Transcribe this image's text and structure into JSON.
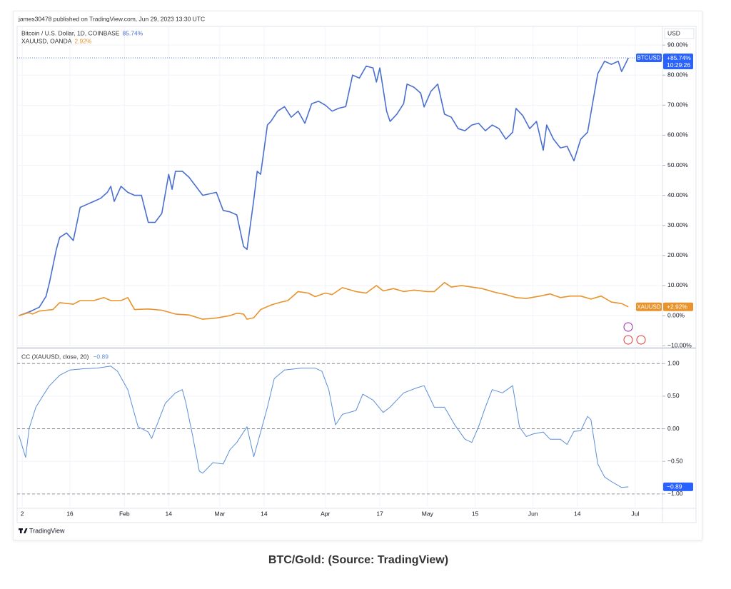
{
  "header": {
    "byline": "james30478 published on TradingView.com, Jun 29, 2023 13:30 UTC"
  },
  "chart_data": [
    {
      "type": "line",
      "currency": "USD",
      "grid": true,
      "price_line": true,
      "xlim": [
        0.5,
        190
      ],
      "xticks": [
        2,
        16,
        {
          "value": 32,
          "label": "Feb"
        },
        {
          "value": 45,
          "label": "14"
        },
        {
          "value": 60,
          "label": "Mar"
        },
        {
          "value": 73,
          "label": "14"
        },
        {
          "value": 91,
          "label": "Apr"
        },
        {
          "value": 107,
          "label": "17"
        },
        {
          "value": 121,
          "label": "May"
        },
        {
          "value": 135,
          "label": "15"
        },
        {
          "value": 152,
          "label": "Jun"
        },
        {
          "value": 165,
          "label": "14"
        },
        {
          "value": 182,
          "label": "Jul"
        }
      ],
      "ylim": [
        -10.2,
        96.2
      ],
      "yticks": [
        {
          "value": -10,
          "label": "−10.00%"
        },
        {
          "value": 0,
          "label": "0.00%"
        },
        {
          "value": 10,
          "label": "10.00%"
        },
        {
          "value": 20,
          "label": "20.00%"
        },
        {
          "value": 30,
          "label": "30.00%"
        },
        {
          "value": 40,
          "label": "40.00%"
        },
        {
          "value": 50,
          "label": "50.00%"
        },
        {
          "value": 60,
          "label": "60.00%"
        },
        {
          "value": 70,
          "label": "70.00%"
        },
        {
          "value": 80,
          "label": "80.00%"
        },
        {
          "value": 90,
          "label": "90.00%"
        }
      ],
      "series": [
        {
          "name": "Bitcoin / U.S. Dollar, 1D, COINBASE",
          "color": "#4a6fd0",
          "badge_color": "#2962ff",
          "legend_value": "85.74%",
          "badge": "BTCUSD",
          "badge_value": "+85.74%",
          "countdown": "10:29:26",
          "x": [
            1,
            4,
            7,
            9,
            10,
            12,
            13,
            15,
            17,
            19,
            21,
            23,
            25,
            27,
            28,
            29,
            31,
            33,
            35,
            37,
            39,
            41,
            43,
            45,
            46,
            47,
            49,
            51,
            53,
            55,
            57,
            59,
            61,
            63,
            65,
            67,
            68,
            70,
            71,
            72,
            74,
            75,
            77,
            79,
            81,
            83,
            85,
            87,
            89,
            91,
            93,
            95,
            97,
            99,
            101,
            103,
            105,
            106,
            107,
            109,
            110,
            112,
            114,
            115,
            117,
            119,
            120,
            122,
            124,
            126,
            128,
            130,
            132,
            134,
            136,
            138,
            140,
            142,
            144,
            146,
            147,
            149,
            151,
            153,
            155,
            156,
            158,
            160,
            162,
            164,
            166,
            168,
            170,
            171,
            173,
            175,
            177,
            178,
            180
          ],
          "values": [
            0,
            1.2,
            2.8,
            6.4,
            11,
            22,
            26,
            27.5,
            25,
            36,
            37,
            38,
            39,
            41,
            43,
            38,
            43,
            41,
            40,
            40,
            31,
            31,
            34,
            47,
            42,
            48,
            48,
            46,
            43,
            40,
            40.5,
            41,
            35,
            34.5,
            33.5,
            23,
            22,
            38.5,
            48,
            47,
            63.4,
            64.6,
            68,
            69.5,
            66,
            68,
            64,
            70.5,
            71.3,
            70,
            68,
            69,
            69.5,
            80,
            79,
            83,
            82.4,
            77.7,
            82.4,
            68,
            64.6,
            67,
            70.5,
            77,
            76,
            74,
            69.4,
            74.6,
            77,
            67,
            66,
            62.2,
            61.5,
            63.4,
            64,
            61.5,
            63.4,
            62.2,
            58.7,
            61,
            68.9,
            66.5,
            62.2,
            64.6,
            55,
            63.4,
            58.7,
            55.8,
            56.3,
            51.5,
            58.7,
            61,
            74,
            80.5,
            84.6,
            83.6,
            84.6,
            81.2,
            85.74
          ]
        },
        {
          "name": "XAUUSD, OANDA",
          "color": "#e8932c",
          "badge_color": "#e8932c",
          "legend_value": "2.92%",
          "badge": "XAUUSD",
          "badge_value": "+2.92%",
          "x": [
            1,
            4,
            5,
            7,
            11,
            13,
            17,
            19,
            23,
            26,
            28,
            31,
            33,
            35,
            39,
            43,
            47,
            51,
            55,
            59,
            63,
            65,
            67,
            68,
            70,
            72,
            75,
            78,
            80,
            83,
            86,
            88,
            91,
            93,
            96,
            100,
            103,
            106,
            108,
            111,
            114,
            117,
            121,
            123,
            126,
            128,
            131,
            134,
            137,
            141,
            144,
            147,
            150,
            154,
            157,
            160,
            163,
            166,
            169,
            172,
            175,
            178,
            180
          ],
          "values": [
            0,
            1,
            0.5,
            1.5,
            2,
            4.3,
            3.8,
            5,
            5,
            6,
            5,
            5,
            6,
            2,
            2.2,
            1.8,
            0.5,
            0.2,
            -1.2,
            -0.8,
            0,
            0.8,
            0.5,
            -1.2,
            -0.7,
            2,
            3.5,
            4.5,
            5,
            8,
            7.5,
            6.3,
            7.5,
            7,
            9.3,
            8,
            7.5,
            10,
            8.2,
            9,
            8,
            8.5,
            8,
            8,
            11,
            9.5,
            10,
            9.5,
            9,
            7.7,
            7,
            6,
            5.7,
            6.5,
            7.2,
            6,
            6.5,
            6.5,
            5.5,
            6.5,
            4.5,
            4,
            2.92
          ]
        }
      ]
    },
    {
      "type": "line",
      "title": "CC (XAUUSD, close, 20)",
      "grid": true,
      "xlim": [
        0.5,
        190
      ],
      "xticks": [
        2,
        16,
        {
          "value": 32,
          "label": "Feb"
        },
        {
          "value": 45,
          "label": "14"
        },
        {
          "value": 60,
          "label": "Mar"
        },
        {
          "value": 73,
          "label": "14"
        },
        {
          "value": 91,
          "label": "Apr"
        },
        {
          "value": 107,
          "label": "17"
        },
        {
          "value": 121,
          "label": "May"
        },
        {
          "value": 135,
          "label": "15"
        },
        {
          "value": 152,
          "label": "Jun"
        },
        {
          "value": 165,
          "label": "14"
        },
        {
          "value": 182,
          "label": "Jul"
        }
      ],
      "ylim": [
        -1.22,
        1.21
      ],
      "yticks": [
        {
          "value": -1,
          "label": "−1.00"
        },
        {
          "value": -0.5,
          "label": "−0.50"
        },
        {
          "value": 0,
          "label": "0.00"
        },
        {
          "value": 0.5,
          "label": "0.50"
        },
        {
          "value": 1,
          "label": "1.00"
        }
      ],
      "levels": [
        1,
        0,
        -1
      ],
      "series": [
        {
          "color": "#5b8fd8",
          "badge_color": "#2962ff",
          "legend_value": "−0.89",
          "badge_value": "−0.89",
          "x": [
            1,
            3,
            4,
            6,
            8,
            10,
            13,
            16,
            20,
            24,
            28,
            30,
            33,
            36,
            39,
            40,
            42,
            44,
            47,
            49,
            50,
            52,
            54,
            55,
            58,
            61,
            63,
            65,
            68,
            70,
            72,
            74,
            76,
            79,
            84,
            88,
            90,
            92,
            94,
            96,
            100,
            102,
            105,
            108,
            110,
            112,
            114,
            118,
            120,
            123,
            126,
            129,
            132,
            134,
            136,
            138,
            140,
            143,
            146,
            148,
            150,
            152,
            155,
            157,
            160,
            162,
            164,
            166,
            168,
            169,
            171,
            173,
            175,
            178,
            180
          ],
          "values": [
            -0.1,
            -0.44,
            0,
            0.33,
            0.5,
            0.66,
            0.82,
            0.9,
            0.92,
            0.93,
            0.96,
            0.88,
            0.6,
            0.03,
            -0.05,
            -0.15,
            0.12,
            0.39,
            0.55,
            0.6,
            0.41,
            -0.1,
            -0.65,
            -0.68,
            -0.52,
            -0.54,
            -0.32,
            -0.21,
            0.03,
            -0.43,
            -0.05,
            0.33,
            0.77,
            0.9,
            0.93,
            0.93,
            0.88,
            0.6,
            0.06,
            0.22,
            0.28,
            0.53,
            0.44,
            0.25,
            0.33,
            0.44,
            0.55,
            0.63,
            0.66,
            0.33,
            0.33,
            0.06,
            -0.16,
            -0.21,
            0.03,
            0.33,
            0.6,
            0.55,
            0.66,
            0.03,
            -0.12,
            -0.08,
            -0.05,
            -0.16,
            -0.16,
            -0.24,
            -0.04,
            -0.03,
            0.19,
            0.14,
            -0.54,
            -0.74,
            -0.81,
            -0.9,
            -0.89
          ]
        }
      ]
    }
  ],
  "footer": {
    "logo": "TradingView"
  },
  "caption": "BTC/Gold: (Source: TradingView)"
}
